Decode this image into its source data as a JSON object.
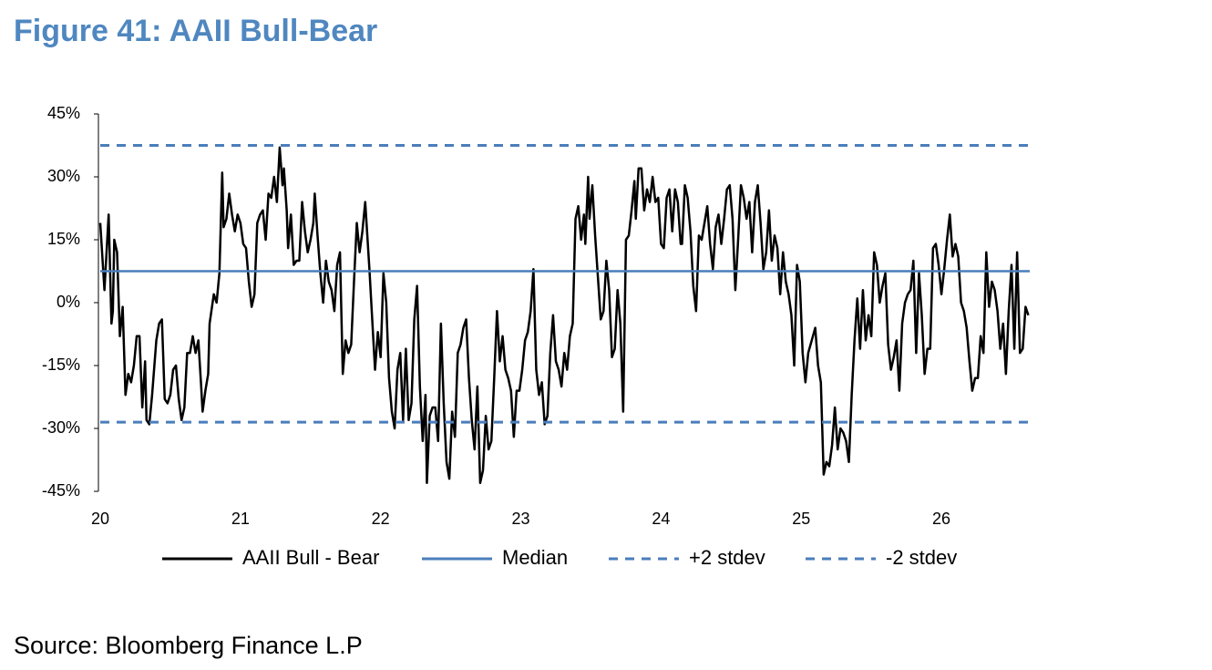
{
  "title": "Figure 41: AAII Bull-Bear",
  "source": "Source: Bloomberg Finance L.P",
  "chart_data": {
    "type": "line",
    "xlim": [
      20,
      26.63
    ],
    "xticks": [
      20,
      21,
      22,
      23,
      24,
      25,
      26
    ],
    "ylim": [
      -45,
      45
    ],
    "yticks": [
      {
        "value": -45,
        "label": "-45%"
      },
      {
        "value": -30,
        "label": "-30%"
      },
      {
        "value": -15,
        "label": "-15%"
      },
      {
        "value": 0,
        "label": "0%"
      },
      {
        "value": 15,
        "label": "15%"
      },
      {
        "value": 30,
        "label": "30%"
      },
      {
        "value": 45,
        "label": "45%"
      }
    ],
    "legend": "bottom",
    "series": [
      {
        "name": "AAII Bull - Bear",
        "color": "#000000",
        "linestyle": "solid",
        "x": [
          20.0,
          20.03,
          20.05,
          20.06,
          20.08,
          20.09,
          20.1,
          20.12,
          20.14,
          20.16,
          20.18,
          20.2,
          20.22,
          20.24,
          20.26,
          20.28,
          20.3,
          20.32,
          20.33,
          20.35,
          20.37,
          20.4,
          20.42,
          20.44,
          20.46,
          20.48,
          20.5,
          20.52,
          20.54,
          20.56,
          20.58,
          20.6,
          20.62,
          20.64,
          20.66,
          20.68,
          20.7,
          20.72,
          20.73,
          20.75,
          20.77,
          20.78,
          20.81,
          20.83,
          20.85,
          20.87,
          20.88,
          20.9,
          20.92,
          20.94,
          20.96,
          20.98,
          21.0,
          21.02,
          21.04,
          21.06,
          21.08,
          21.1,
          21.12,
          21.14,
          21.16,
          21.18,
          21.2,
          21.22,
          21.24,
          21.26,
          21.28,
          21.3,
          21.31,
          21.33,
          21.34,
          21.36,
          21.38,
          21.4,
          21.42,
          21.44,
          21.46,
          21.48,
          21.5,
          21.52,
          21.53,
          21.55,
          21.57,
          21.59,
          21.61,
          21.63,
          21.65,
          21.67,
          21.69,
          21.71,
          21.73,
          21.75,
          21.77,
          21.79,
          21.81,
          21.83,
          21.85,
          21.87,
          21.89,
          21.92,
          21.94,
          21.96,
          21.98,
          22.0,
          22.02,
          22.04,
          22.06,
          22.08,
          22.1,
          22.12,
          22.14,
          22.16,
          22.18,
          22.2,
          22.22,
          22.24,
          22.26,
          22.28,
          22.3,
          22.32,
          22.33,
          22.35,
          22.37,
          22.39,
          22.41,
          22.43,
          22.45,
          22.47,
          22.49,
          22.51,
          22.53,
          22.55,
          22.57,
          22.59,
          22.61,
          22.63,
          22.65,
          22.67,
          22.69,
          22.71,
          22.73,
          22.75,
          22.77,
          22.79,
          22.81,
          22.83,
          22.85,
          22.87,
          22.89,
          22.91,
          22.93,
          22.95,
          22.97,
          22.99,
          23.01,
          23.03,
          23.05,
          23.07,
          23.09,
          23.11,
          23.13,
          23.15,
          23.17,
          23.19,
          23.21,
          23.23,
          23.25,
          23.27,
          23.29,
          23.31,
          23.33,
          23.35,
          23.37,
          23.39,
          23.41,
          23.43,
          23.45,
          23.46,
          23.48,
          23.49,
          23.51,
          23.53,
          23.55,
          23.57,
          23.59,
          23.61,
          23.63,
          23.65,
          23.67,
          23.69,
          23.71,
          23.73,
          23.75,
          23.77,
          23.79,
          23.81,
          23.82,
          23.84,
          23.86,
          23.88,
          23.9,
          23.92,
          23.94,
          23.96,
          23.98,
          24.0,
          24.02,
          24.04,
          24.06,
          24.08,
          24.1,
          24.12,
          24.14,
          24.15,
          24.17,
          24.19,
          24.21,
          24.23,
          24.25,
          24.27,
          24.29,
          24.31,
          24.33,
          24.35,
          24.37,
          24.39,
          24.41,
          24.43,
          24.45,
          24.47,
          24.49,
          24.51,
          24.53,
          24.55,
          24.57,
          24.59,
          24.61,
          24.63,
          24.65,
          24.67,
          24.69,
          24.71,
          24.73,
          24.75,
          24.77,
          24.79,
          24.81,
          24.83,
          24.85,
          24.87,
          24.89,
          24.91,
          24.93,
          24.95,
          24.97,
          24.99,
          25.01,
          25.03,
          25.05,
          25.1,
          25.12,
          25.14,
          25.16,
          25.18,
          25.2,
          25.22,
          25.24,
          25.26,
          25.28,
          25.3,
          25.32,
          25.34,
          25.36,
          25.38,
          25.4,
          25.42,
          25.44,
          25.46,
          25.48,
          25.5,
          25.52,
          25.54,
          25.56,
          25.58,
          25.6,
          25.62,
          25.64,
          25.66,
          25.68,
          25.7,
          25.72,
          25.74,
          25.76,
          25.78,
          25.8,
          25.82,
          25.84,
          25.86,
          25.88,
          25.9,
          25.92,
          25.94,
          25.96,
          25.98,
          26.0,
          26.02,
          26.04,
          26.06,
          26.08,
          26.1,
          26.12,
          26.14,
          26.16,
          26.18,
          26.2,
          26.22,
          26.24,
          26.26,
          26.28,
          26.3,
          26.32,
          26.34,
          26.36,
          26.38,
          26.4,
          26.42,
          26.44,
          26.46,
          26.48,
          26.5,
          26.52,
          26.54,
          26.56,
          26.58,
          26.6,
          26.62
        ],
        "values": [
          19,
          3,
          15,
          21,
          -5,
          -2,
          15,
          12,
          -8,
          -1,
          -22,
          -17,
          -19,
          -15,
          -8,
          -8,
          -25,
          -14,
          -28,
          -29,
          -22,
          -9,
          -5,
          -4,
          -23,
          -24,
          -22,
          -16,
          -15,
          -23,
          -28,
          -25,
          -12,
          -12,
          -8,
          -12,
          -9,
          -20,
          -26,
          -21,
          -17,
          -5,
          2,
          0,
          7,
          31,
          18,
          20,
          26,
          21,
          17,
          21,
          19,
          14,
          13,
          5,
          -1,
          2,
          19,
          21,
          22,
          15,
          26,
          25,
          30,
          24,
          37,
          28,
          32,
          22,
          13,
          21,
          9,
          10,
          10,
          24,
          17,
          12,
          15,
          19,
          26,
          16,
          7,
          0,
          10,
          5,
          3,
          -2,
          9,
          12,
          -17,
          -9,
          -12,
          -10,
          5,
          19,
          12,
          17,
          24,
          8,
          -4,
          -16,
          -7,
          -13,
          7,
          0,
          -18,
          -26,
          -30,
          -16,
          -12,
          -28,
          -11,
          -28,
          -24,
          -4,
          4,
          -20,
          -33,
          -22,
          -43,
          -27,
          -25,
          -25,
          -33,
          -5,
          -24,
          -38,
          -42,
          -26,
          -32,
          -12,
          -10,
          -6,
          -4,
          -18,
          -28,
          -35,
          -20,
          -43,
          -40,
          -27,
          -35,
          -33,
          -18,
          -2,
          -14,
          -8,
          -16,
          -18,
          -21,
          -32,
          -21,
          -21,
          -16,
          -9,
          -7,
          -2,
          8,
          -16,
          -22,
          -19,
          -29,
          -27,
          -12,
          -3,
          -14,
          -16,
          -20,
          -12,
          -16,
          -8,
          -5,
          20,
          23,
          15,
          21,
          14,
          30,
          20,
          28,
          16,
          6,
          -4,
          -2,
          10,
          3,
          -13,
          -11,
          3,
          -5,
          -26,
          15,
          16,
          22,
          29,
          20,
          32,
          32,
          22,
          27,
          24,
          30,
          24,
          25,
          14,
          13,
          25,
          27,
          17,
          27,
          24,
          14,
          14,
          28,
          25,
          17,
          4,
          -2,
          16,
          15,
          19,
          23,
          14,
          8,
          18,
          21,
          14,
          20,
          27,
          28,
          20,
          3,
          15,
          28,
          25,
          20,
          24,
          12,
          24,
          28,
          19,
          8,
          12,
          22,
          10,
          16,
          13,
          2,
          12,
          5,
          2,
          -3,
          -15,
          9,
          5,
          -12,
          -19,
          -12,
          -6,
          -15,
          -19,
          -41,
          -38,
          -39,
          -34,
          -25,
          -35,
          -30,
          -31,
          -33,
          -38,
          -22,
          -9,
          1,
          -11,
          3,
          -9,
          -3,
          -8,
          12,
          9,
          0,
          4,
          7,
          -10,
          -16,
          -13,
          -9,
          -21,
          -5,
          0,
          2,
          3,
          10,
          -12,
          7,
          -3,
          -17,
          -11,
          -11,
          13,
          14,
          9,
          2,
          8,
          15,
          21,
          11,
          14,
          11,
          0,
          -2,
          -6,
          -14,
          -21,
          -18,
          -18,
          -8,
          -12,
          12,
          -1,
          5,
          3,
          -2,
          -11,
          -5,
          -17,
          -2,
          9,
          -11,
          12,
          -12,
          -11,
          -1,
          -3
        ]
      },
      {
        "name": "Median",
        "color": "#4a7ebb",
        "linestyle": "solid",
        "x": [
          20,
          26.63
        ],
        "values": [
          7.5,
          7.5
        ]
      },
      {
        "name": "+2 stdev",
        "color": "#4a7ebb",
        "linestyle": "dashed",
        "x": [
          20,
          26.63
        ],
        "values": [
          37.5,
          37.5
        ]
      },
      {
        "name": "-2 stdev",
        "color": "#4a7ebb",
        "linestyle": "dashed",
        "x": [
          20,
          26.63
        ],
        "values": [
          -28.5,
          -28.5
        ]
      }
    ]
  }
}
